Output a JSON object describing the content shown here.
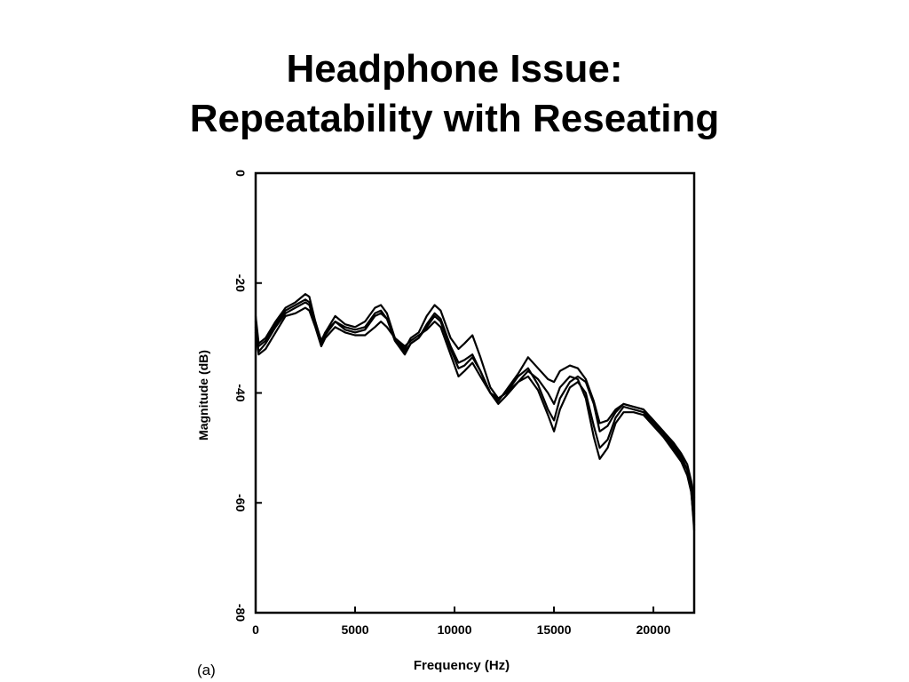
{
  "slide": {
    "title_line1": "Headphone Issue:",
    "title_line2": "Repeatability with Reseating"
  },
  "chart_data": {
    "type": "line",
    "title": "",
    "xlabel": "Frequency (Hz)",
    "ylabel": "Magnitude (dB)",
    "panel_label": "(a)",
    "xlim": [
      0,
      22050
    ],
    "ylim": [
      -80,
      0
    ],
    "xticks": [
      0,
      5000,
      10000,
      15000,
      20000
    ],
    "yticks": [
      0,
      -20,
      -40,
      -60,
      -80
    ],
    "grid": false,
    "legend": false,
    "line_color": "#000000",
    "series": [
      {
        "x": [
          0,
          150,
          500,
          1000,
          1500,
          2000,
          2500,
          2700,
          3000,
          3300,
          3500,
          4000,
          4500,
          5000,
          5500,
          6000,
          6300,
          6600,
          7000,
          7500,
          7800,
          8200,
          8600,
          9000,
          9300,
          9800,
          10200,
          10500,
          10900,
          11300,
          11800,
          12200,
          12600,
          13200,
          13700,
          14200,
          14700,
          15000,
          15300,
          15800,
          16200,
          16600,
          17000,
          17300,
          17700,
          18100,
          18500,
          19000,
          19500,
          20000,
          20500,
          21000,
          21400,
          21700,
          21900,
          22050
        ],
        "y": [
          -26,
          -31,
          -30,
          -27,
          -24.5,
          -23.5,
          -22,
          -22.5,
          -27,
          -31,
          -29,
          -26,
          -27.5,
          -28,
          -27,
          -24.5,
          -24,
          -25.5,
          -30,
          -32,
          -30,
          -29,
          -26,
          -24,
          -25,
          -30,
          -32,
          -31,
          -29.5,
          -33.5,
          -39,
          -41,
          -40,
          -37,
          -35.5,
          -38.5,
          -43,
          -45,
          -41,
          -38,
          -37,
          -38,
          -42,
          -47,
          -46,
          -43.5,
          -42,
          -42.5,
          -43,
          -45,
          -47,
          -49,
          -51,
          -53,
          -56,
          -59
        ]
      },
      {
        "x": [
          0,
          150,
          500,
          1000,
          1500,
          2000,
          2500,
          2700,
          3000,
          3300,
          3500,
          4000,
          4500,
          5000,
          5500,
          6000,
          6300,
          6600,
          7000,
          7500,
          7800,
          8200,
          8600,
          9000,
          9300,
          9800,
          10200,
          10500,
          10900,
          11300,
          11800,
          12200,
          12600,
          13200,
          13700,
          14200,
          14700,
          15000,
          15300,
          15800,
          16200,
          16600,
          17000,
          17300,
          17700,
          18100,
          18500,
          19000,
          19500,
          20000,
          20500,
          21000,
          21400,
          21700,
          21900,
          22050
        ],
        "y": [
          -28,
          -32.5,
          -31,
          -28,
          -25.5,
          -24.5,
          -23.5,
          -24,
          -27.5,
          -31,
          -29.5,
          -27,
          -28.5,
          -29,
          -28.5,
          -26,
          -25.5,
          -26.5,
          -30.5,
          -33,
          -31,
          -30,
          -28,
          -26,
          -27,
          -32,
          -35.5,
          -35,
          -33.5,
          -36,
          -40,
          -42,
          -40.5,
          -38,
          -37,
          -39.5,
          -44,
          -47,
          -43,
          -39,
          -38,
          -40,
          -46,
          -50,
          -48.5,
          -44.5,
          -42.5,
          -43,
          -43.5,
          -45.5,
          -47.5,
          -50,
          -52,
          -54,
          -57,
          -62
        ]
      },
      {
        "x": [
          0,
          150,
          500,
          1000,
          1500,
          2000,
          2500,
          2700,
          3000,
          3300,
          3500,
          4000,
          4500,
          5000,
          5500,
          6000,
          6300,
          6600,
          7000,
          7500,
          7800,
          8200,
          8600,
          9000,
          9300,
          9800,
          10200,
          10500,
          10900,
          11300,
          11800,
          12200,
          12600,
          13200,
          13700,
          14200,
          14700,
          15000,
          15300,
          15800,
          16200,
          16600,
          17000,
          17300,
          17700,
          18100,
          18500,
          19000,
          19500,
          20000,
          20500,
          21000,
          21400,
          21700,
          21900,
          22050
        ],
        "y": [
          -29,
          -33,
          -32,
          -29,
          -26,
          -25.5,
          -24.5,
          -25,
          -28,
          -31.5,
          -30,
          -28,
          -29,
          -29.5,
          -29.5,
          -28,
          -27,
          -28,
          -30,
          -31.5,
          -30.5,
          -29.5,
          -28.5,
          -27,
          -28,
          -33,
          -37,
          -36,
          -34.5,
          -37,
          -40,
          -41,
          -40,
          -38,
          -36,
          -37.5,
          -40,
          -42,
          -39,
          -37,
          -37.5,
          -41,
          -48,
          -52,
          -50,
          -45.5,
          -43.5,
          -43.5,
          -44,
          -46,
          -48,
          -50.5,
          -52.5,
          -55,
          -58,
          -64
        ]
      },
      {
        "x": [
          0,
          150,
          500,
          1000,
          1500,
          2000,
          2500,
          2700,
          3000,
          3300,
          3500,
          4000,
          4500,
          5000,
          5500,
          6000,
          6300,
          6600,
          7000,
          7500,
          7800,
          8200,
          8600,
          9000,
          9300,
          9800,
          10200,
          10500,
          10900,
          11300,
          11800,
          12200,
          12600,
          13200,
          13700,
          14200,
          14700,
          15000,
          15300,
          15800,
          16200,
          16600,
          17000,
          17300,
          17700,
          18100,
          18500,
          19000,
          19500,
          20000,
          20500,
          21000,
          21400,
          21700,
          21900,
          22050
        ],
        "y": [
          -27,
          -31.5,
          -30.5,
          -27.5,
          -25,
          -24,
          -23,
          -23.5,
          -27,
          -30.5,
          -29,
          -27,
          -28,
          -28.5,
          -28,
          -25.5,
          -25,
          -26.5,
          -30,
          -32.5,
          -31,
          -30,
          -27.5,
          -25.5,
          -26.5,
          -31.5,
          -34.5,
          -34,
          -33,
          -36,
          -40,
          -41.5,
          -39.5,
          -36.5,
          -33.5,
          -35.5,
          -37.5,
          -38,
          -36,
          -35,
          -35.5,
          -37.5,
          -41.5,
          -45.5,
          -45,
          -43,
          -42,
          -42.5,
          -43,
          -45,
          -47,
          -49.5,
          -51.5,
          -54,
          -57.5,
          -65
        ]
      }
    ]
  }
}
